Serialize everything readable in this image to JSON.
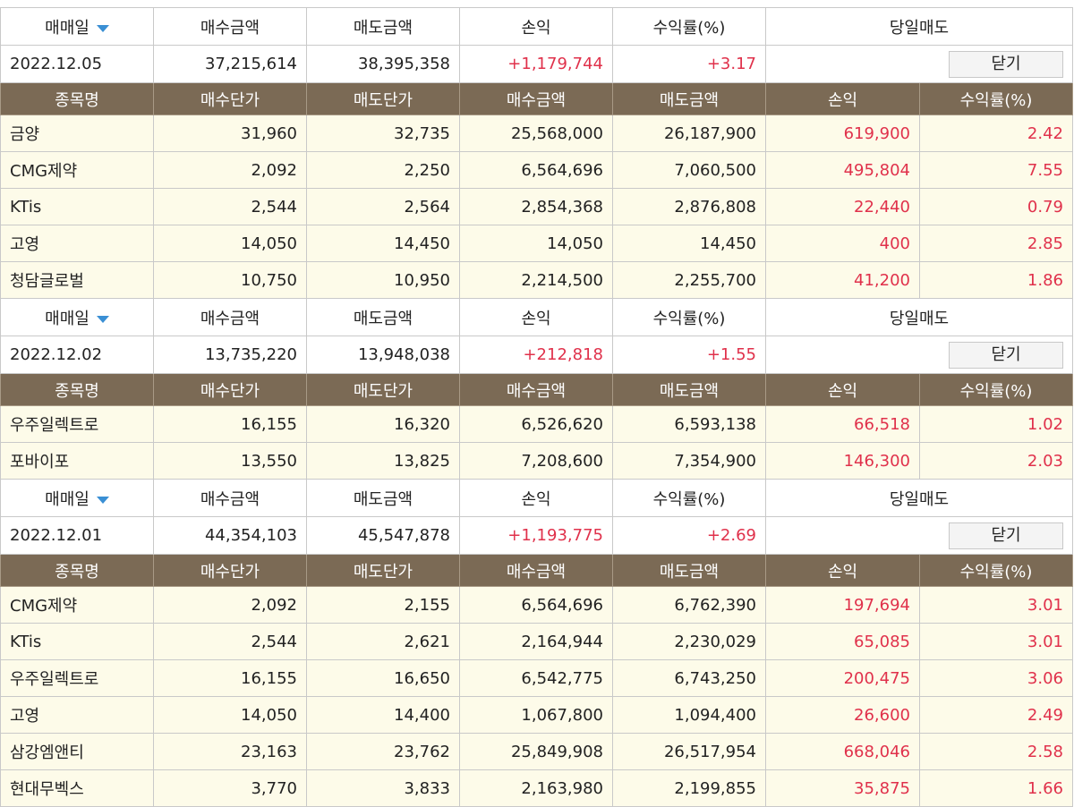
{
  "summary_header": [
    "매매일",
    "매수금액",
    "매도금액",
    "손익",
    "수익률(%)",
    "당일매도"
  ],
  "detail_header": [
    "종목명",
    "매수단가",
    "매도단가",
    "매수금액",
    "매도금액",
    "손익",
    "수익률(%)"
  ],
  "close_button": "닫기",
  "groups": [
    {
      "summary": [
        "2022.12.05",
        "37,215,614",
        "38,395,358",
        "+1,179,744",
        "+3.17"
      ],
      "rows": [
        [
          "금양",
          "31,960",
          "32,735",
          "25,568,000",
          "26,187,900",
          "619,900",
          "2.42"
        ],
        [
          "CMG제약",
          "2,092",
          "2,250",
          "6,564,696",
          "7,060,500",
          "495,804",
          "7.55"
        ],
        [
          "KTis",
          "2,544",
          "2,564",
          "2,854,368",
          "2,876,808",
          "22,440",
          "0.79"
        ],
        [
          "고영",
          "14,050",
          "14,450",
          "14,050",
          "14,450",
          "400",
          "2.85"
        ],
        [
          "청담글로벌",
          "10,750",
          "10,950",
          "2,214,500",
          "2,255,700",
          "41,200",
          "1.86"
        ]
      ]
    },
    {
      "summary": [
        "2022.12.02",
        "13,735,220",
        "13,948,038",
        "+212,818",
        "+1.55"
      ],
      "rows": [
        [
          "우주일렉트로",
          "16,155",
          "16,320",
          "6,526,620",
          "6,593,138",
          "66,518",
          "1.02"
        ],
        [
          "포바이포",
          "13,550",
          "13,825",
          "7,208,600",
          "7,354,900",
          "146,300",
          "2.03"
        ]
      ]
    },
    {
      "summary": [
        "2022.12.01",
        "44,354,103",
        "45,547,878",
        "+1,193,775",
        "+2.69"
      ],
      "rows": [
        [
          "CMG제약",
          "2,092",
          "2,155",
          "6,564,696",
          "6,762,390",
          "197,694",
          "3.01"
        ],
        [
          "KTis",
          "2,544",
          "2,621",
          "2,164,944",
          "2,230,029",
          "65,085",
          "3.01"
        ],
        [
          "우주일렉트로",
          "16,155",
          "16,650",
          "6,542,775",
          "6,743,250",
          "200,475",
          "3.06"
        ],
        [
          "고영",
          "14,050",
          "14,400",
          "1,067,800",
          "1,094,400",
          "26,600",
          "2.49"
        ],
        [
          "삼강엠앤티",
          "23,163",
          "23,762",
          "25,849,908",
          "26,517,954",
          "668,046",
          "2.58"
        ],
        [
          "현대무벡스",
          "3,770",
          "3,833",
          "2,163,980",
          "2,199,855",
          "35,875",
          "1.66"
        ]
      ]
    }
  ]
}
